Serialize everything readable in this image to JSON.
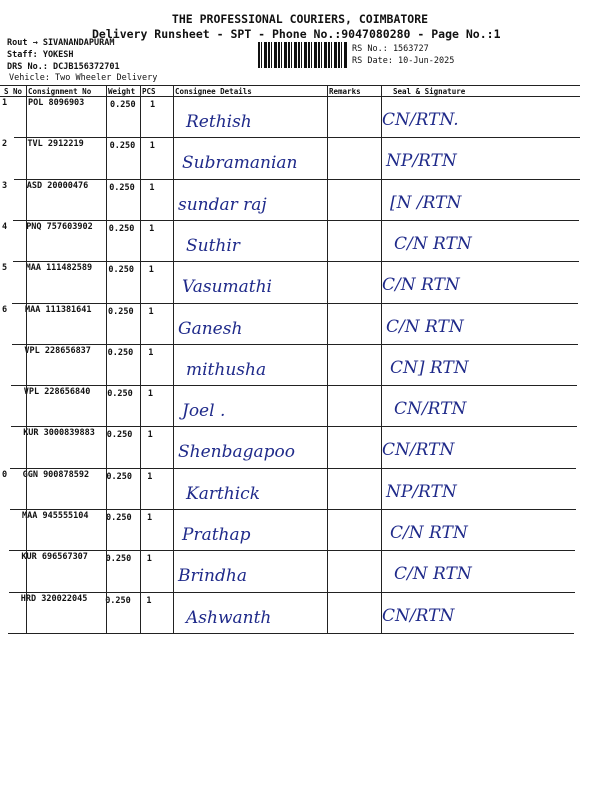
{
  "header": {
    "title": "THE PROFESSIONAL COURIERS, COIMBATORE",
    "subtitle": "Delivery Runsheet - SPT - Phone No.:9047080280 - Page No.:1",
    "route": "Rout → SIVANANDAPURAM",
    "staff": "Staff: YOKESH",
    "drs_no": "DRS No.: DCJB156372701",
    "vehicle": "Vehicle: Two Wheeler Delivery",
    "rs_no": "RS No.: 1563727",
    "rs_date": "RS Date: 10-Jun-2025"
  },
  "columns": [
    "S No",
    "Consignment No",
    "Weight",
    "PCS",
    "Consignee Details",
    "Remarks",
    "Seal & Signature"
  ],
  "rows": [
    {
      "sno": "1",
      "consignment": "POL 8096903",
      "weight": "0.250",
      "pcs": "1",
      "consignee": "Rethish",
      "remarks": "",
      "signature": "CN/RTN."
    },
    {
      "sno": "2",
      "consignment": "TVL 2912219",
      "weight": "0.250",
      "pcs": "1",
      "consignee": "Subramanian",
      "remarks": "",
      "signature": "NP/RTN"
    },
    {
      "sno": "3",
      "consignment": "ASD 20000476",
      "weight": "0.250",
      "pcs": "1",
      "consignee": "sundar raj",
      "remarks": "",
      "signature": "[N /RTN"
    },
    {
      "sno": "4",
      "consignment": "PNQ 757603902",
      "weight": "0.250",
      "pcs": "1",
      "consignee": "Suthir",
      "remarks": "",
      "signature": "C/N RTN"
    },
    {
      "sno": "5",
      "consignment": "MAA 111482589",
      "weight": "0.250",
      "pcs": "1",
      "consignee": "Vasumathi",
      "remarks": "",
      "signature": "C/N RTN"
    },
    {
      "sno": "6",
      "consignment": "MAA 111381641",
      "weight": "0.250",
      "pcs": "1",
      "consignee": "Ganesh",
      "remarks": "",
      "signature": "C/N RTN"
    },
    {
      "sno": "",
      "consignment": "VPL 228656837",
      "weight": "0.250",
      "pcs": "1",
      "consignee": "mithusha",
      "remarks": "",
      "signature": "CN] RTN"
    },
    {
      "sno": "",
      "consignment": "VPL 228656840",
      "weight": "0.250",
      "pcs": "1",
      "consignee": "Joel .",
      "remarks": "",
      "signature": "CN/RTN"
    },
    {
      "sno": "",
      "consignment": "KUR 3000839883",
      "weight": "0.250",
      "pcs": "1",
      "consignee": "Shenbagapoo",
      "remarks": "",
      "signature": "CN/RTN"
    },
    {
      "sno": "0",
      "consignment": "GGN 900878592",
      "weight": "0.250",
      "pcs": "1",
      "consignee": "Karthick",
      "remarks": "",
      "signature": "NP/RTN"
    },
    {
      "sno": "",
      "consignment": "MAA 945555104",
      "weight": "0.250",
      "pcs": "1",
      "consignee": "Prathap",
      "remarks": "",
      "signature": "C/N RTN"
    },
    {
      "sno": "",
      "consignment": "KUR 696567307",
      "weight": "0.250",
      "pcs": "1",
      "consignee": "Brindha",
      "remarks": "",
      "signature": "C/N RTN"
    },
    {
      "sno": "",
      "consignment": "HRD 320022045",
      "weight": "0.250",
      "pcs": "1",
      "consignee": "Ashwanth",
      "remarks": "",
      "signature": "CN/RTN"
    }
  ]
}
